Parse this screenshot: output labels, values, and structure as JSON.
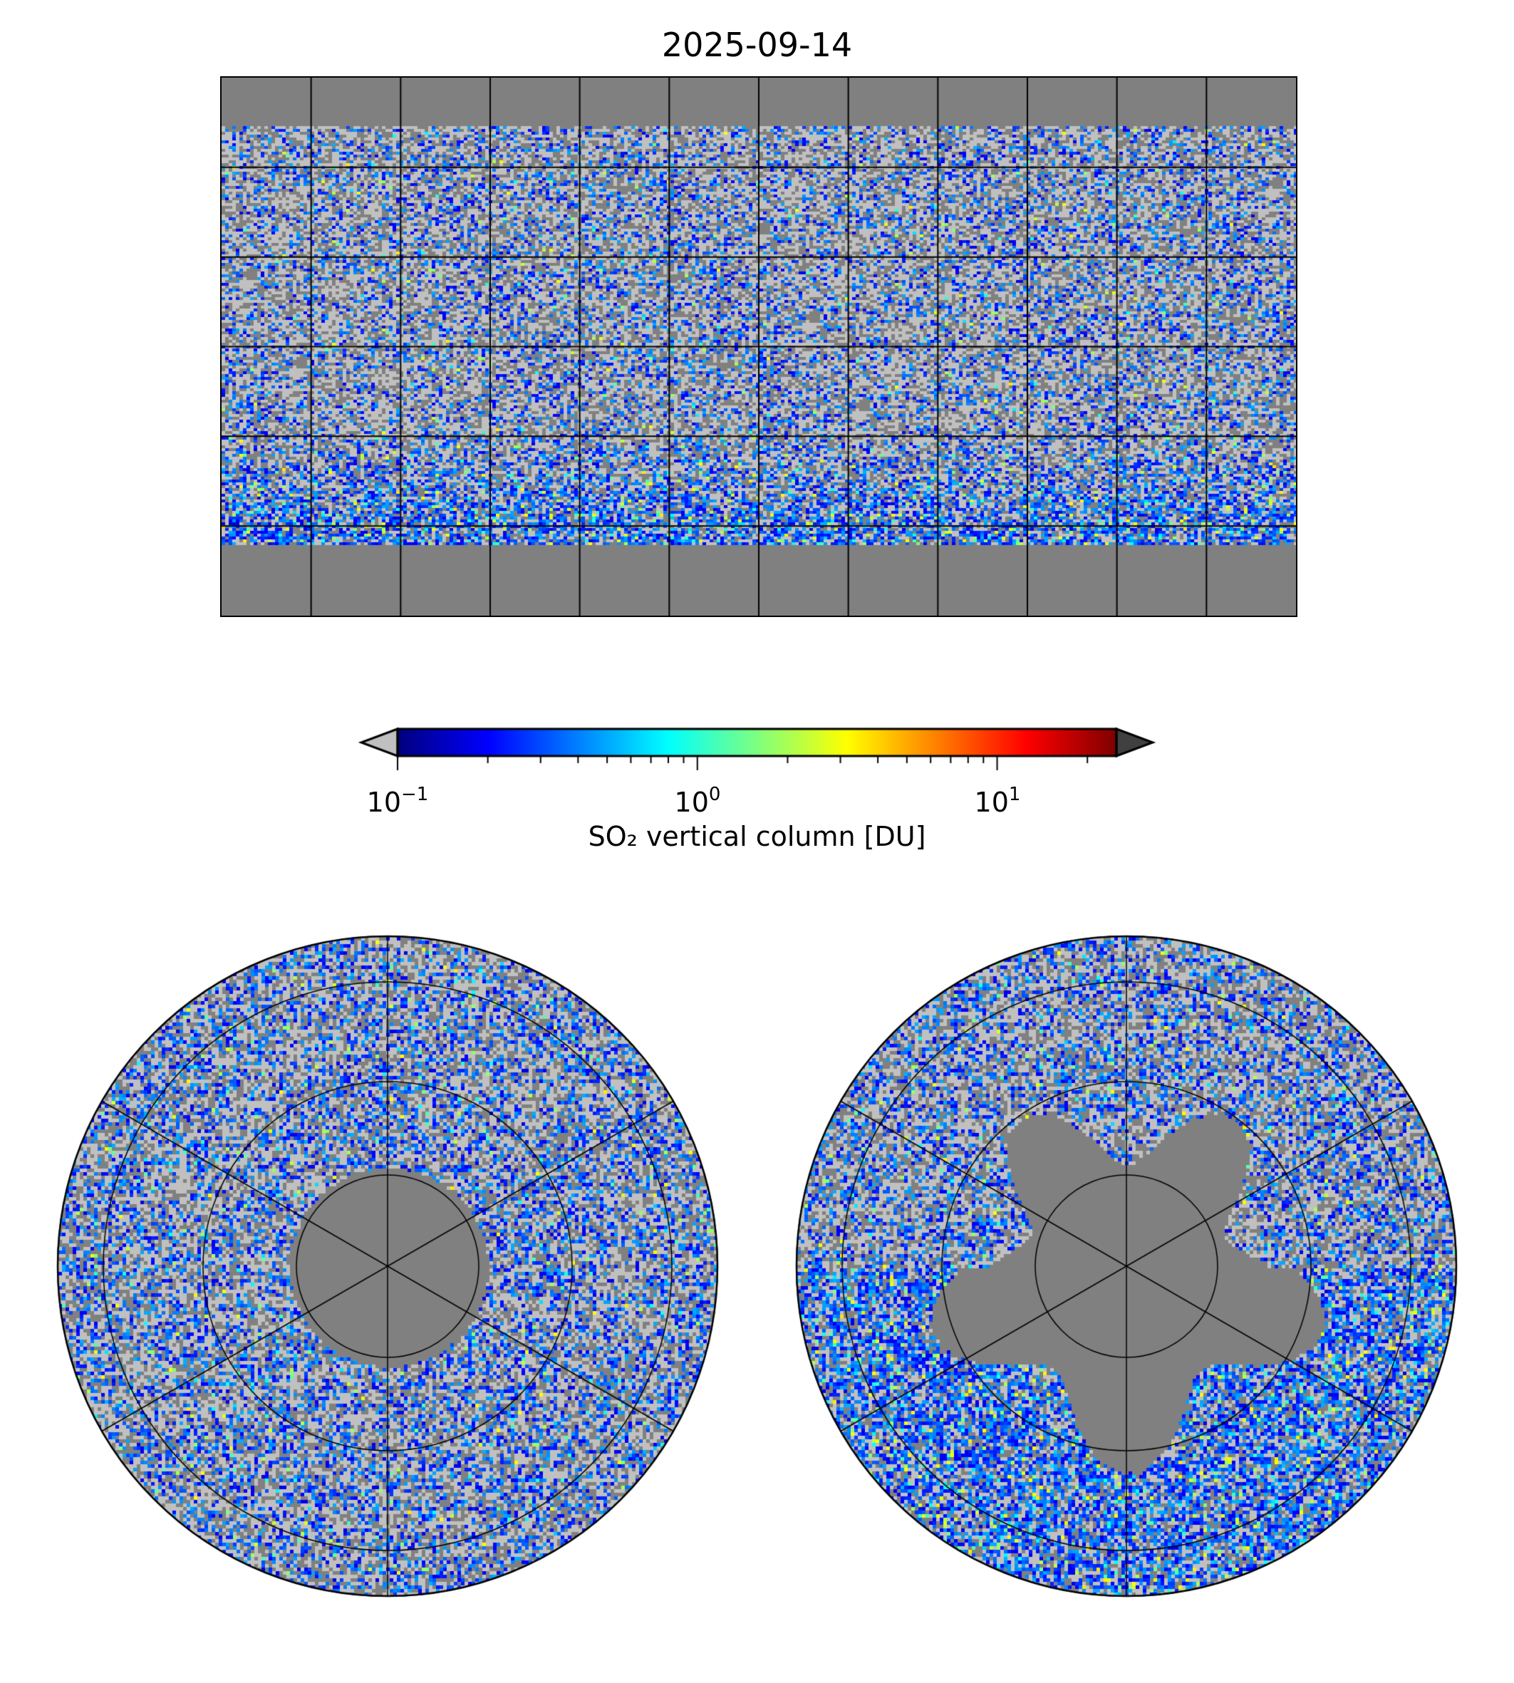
{
  "title": "2025-09-14",
  "colorbar": {
    "label": "SO₂ vertical column [DU]",
    "scale": "log",
    "range": [
      0.1,
      25
    ],
    "ticks": [
      {
        "base": "10",
        "exp": "−1",
        "value": 0.1
      },
      {
        "base": "10",
        "exp": "0",
        "value": 1
      },
      {
        "base": "10",
        "exp": "1",
        "value": 10
      }
    ],
    "extend": "both",
    "under_color": "#c0c0c0",
    "over_color": "#404040",
    "colormap": "jet"
  },
  "panels": [
    {
      "name": "global",
      "projection": "equirectangular",
      "grid_lon_step_deg": 30,
      "grid_lat_step_deg": 30
    },
    {
      "name": "north-polar",
      "projection": "north-polar-stereographic"
    },
    {
      "name": "south-polar",
      "projection": "south-polar-stereographic"
    }
  ],
  "colors": {
    "no_data": "#808080",
    "below_range": "#c0c0c0"
  }
}
